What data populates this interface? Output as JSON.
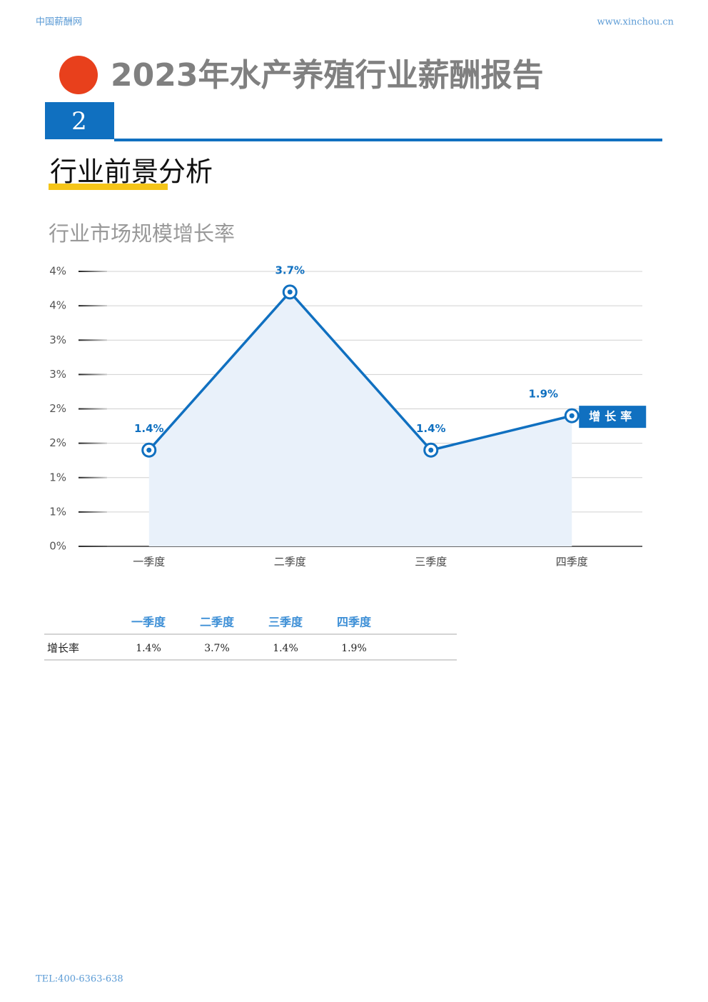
{
  "header": {
    "site_name": "中国薪酬网",
    "url": "www.xinchou.cn"
  },
  "title": "2023年水产养殖行业薪酬报告",
  "section": {
    "number": "2",
    "heading": "行业前景分析"
  },
  "chart_data": {
    "type": "line",
    "title": "行业市场规模增长率",
    "categories": [
      "一季度",
      "二季度",
      "三季度",
      "四季度"
    ],
    "series": [
      {
        "name": "增长率",
        "color": "#1070c0",
        "values": [
          1.4,
          3.7,
          1.4,
          1.9
        ],
        "value_labels": [
          "1.4%",
          "3.7%",
          "1.4%",
          "1.9%"
        ]
      }
    ],
    "ylim": [
      0,
      4
    ],
    "yticks": [
      {
        "value": 0,
        "label": "0%"
      },
      {
        "value": 0.5,
        "label": "1%"
      },
      {
        "value": 1,
        "label": "1%"
      },
      {
        "value": 1.5,
        "label": "2%"
      },
      {
        "value": 2,
        "label": "2%"
      },
      {
        "value": 2.5,
        "label": "3%"
      },
      {
        "value": 3,
        "label": "3%"
      },
      {
        "value": 3.5,
        "label": "4%"
      },
      {
        "value": 4,
        "label": "4%"
      }
    ],
    "grid": true,
    "area": true
  },
  "footer": {
    "tel": "TEL:400-6363-638"
  }
}
